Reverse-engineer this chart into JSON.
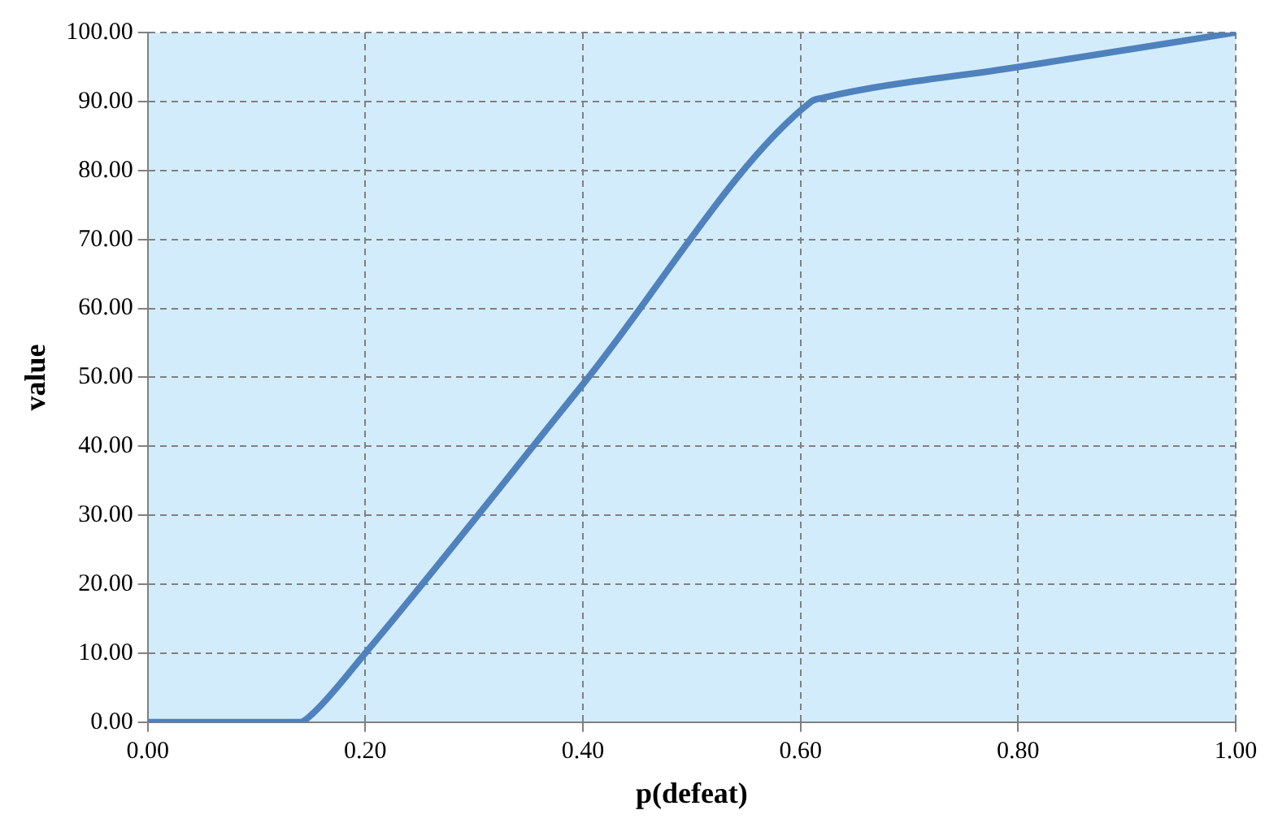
{
  "chart_data": {
    "type": "line",
    "xlabel": "p(defeat)",
    "ylabel": "value",
    "x": [
      0,
      0.14,
      0.15,
      0.2,
      0.4,
      0.61,
      0.62,
      0.8,
      1
    ],
    "series": [
      {
        "color": "#4f81bd",
        "values": [
          0,
          0,
          1,
          10,
          49,
          90,
          90.5,
          95,
          100
        ]
      }
    ],
    "xlim": [
      0,
      1
    ],
    "ylim": [
      0,
      100
    ],
    "xticks": [
      {
        "value": 0,
        "label": "0.00"
      },
      {
        "value": 0.2,
        "label": "0.20"
      },
      {
        "value": 0.4,
        "label": "0.40"
      },
      {
        "value": 0.6,
        "label": "0.60"
      },
      {
        "value": 0.8,
        "label": "0.80"
      },
      {
        "value": 1,
        "label": "1.00"
      }
    ],
    "yticks": [
      {
        "value": 0,
        "label": "0.00"
      },
      {
        "value": 10,
        "label": "10.00"
      },
      {
        "value": 20,
        "label": "20.00"
      },
      {
        "value": 30,
        "label": "30.00"
      },
      {
        "value": 40,
        "label": "40.00"
      },
      {
        "value": 50,
        "label": "50.00"
      },
      {
        "value": 60,
        "label": "60.00"
      },
      {
        "value": 70,
        "label": "70.00"
      },
      {
        "value": 80,
        "label": "80.00"
      },
      {
        "value": 90,
        "label": "90.00"
      },
      {
        "value": 100,
        "label": "100.00"
      }
    ],
    "grid": true,
    "legend": false,
    "marker": "none",
    "line_style": "solid"
  }
}
